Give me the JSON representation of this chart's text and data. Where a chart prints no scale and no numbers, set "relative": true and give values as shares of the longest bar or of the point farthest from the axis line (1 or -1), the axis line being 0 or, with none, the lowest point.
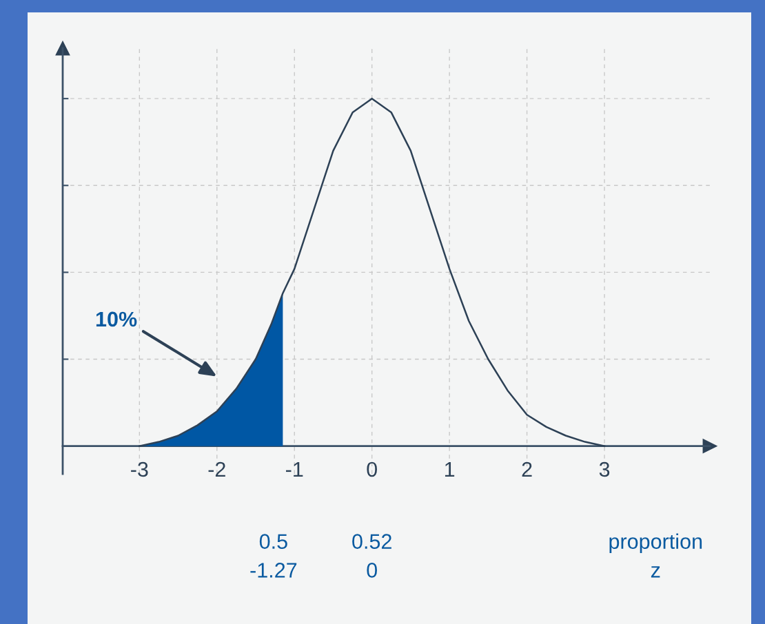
{
  "chart_data": {
    "type": "line",
    "relative": true,
    "xlim": [
      -3.99,
      4.36
    ],
    "xticks": [
      -3,
      -2,
      -1,
      0,
      1,
      2,
      3
    ],
    "grid": true,
    "legend": false,
    "marker": "none",
    "line_style": "solid",
    "series": [
      {
        "color": "#2d4156",
        "x": [
          -3,
          -2.75,
          -2.5,
          -2.25,
          -2,
          -1.75,
          -1.5,
          -1.3,
          -1.15,
          -1,
          -0.75,
          -0.5,
          -0.25,
          0,
          0.25,
          0.5,
          0.75,
          1,
          1.25,
          1.5,
          1.75,
          2,
          2.25,
          2.5,
          2.75,
          3
        ],
        "values": [
          0,
          0.012,
          0.03,
          0.06,
          0.1,
          0.165,
          0.25,
          0.35,
          0.44,
          0.51,
          0.68,
          0.85,
          0.96,
          1.0,
          0.96,
          0.85,
          0.68,
          0.51,
          0.36,
          0.25,
          0.16,
          0.09,
          0.055,
          0.03,
          0.012,
          0
        ]
      },
      {
        "type": "area",
        "color": "#0057a4",
        "x": [
          -3,
          -2.75,
          -2.5,
          -2.25,
          -2,
          -1.75,
          -1.5,
          -1.3,
          -1.15
        ],
        "values": [
          0,
          0.012,
          0.03,
          0.06,
          0.1,
          0.165,
          0.25,
          0.35,
          0.44
        ]
      }
    ],
    "annotations": [
      "10%",
      "0.5\n-1.27",
      "0.52\n0",
      "proportion\nz"
    ]
  }
}
